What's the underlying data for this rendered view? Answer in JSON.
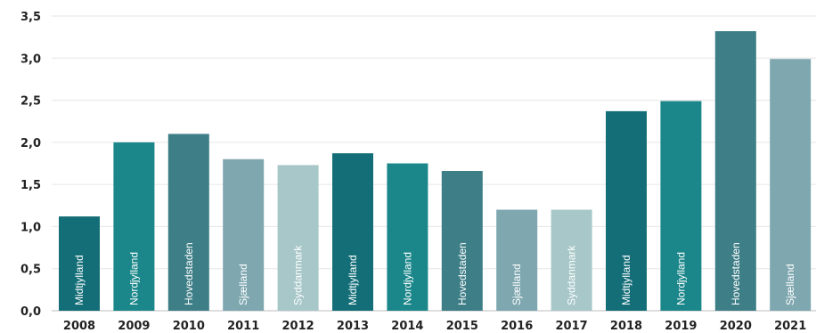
{
  "chart_data": {
    "type": "bar",
    "categories": [
      "2008",
      "2009",
      "2010",
      "2011",
      "2012",
      "2013",
      "2014",
      "2015",
      "2016",
      "2017",
      "2018",
      "2019",
      "2020",
      "2021"
    ],
    "values": [
      1.12,
      2.0,
      2.1,
      1.8,
      1.73,
      1.87,
      1.75,
      1.66,
      1.2,
      1.2,
      2.37,
      2.49,
      3.32,
      2.99
    ],
    "bar_labels": [
      "Midtjylland",
      "Nordjylland",
      "Hovedstaden",
      "Sjælland",
      "Syddanmark",
      "Midtjylland",
      "Nordjylland",
      "Hovedstaden",
      "Sjælland",
      "Syddanmark",
      "Midtjylland",
      "Nordjylland",
      "Hovedstaden",
      "Sjælland"
    ],
    "region_colors": {
      "Midtjylland": "#136e78",
      "Nordjylland": "#1b878a",
      "Hovedstaden": "#3d7e87",
      "Sjælland": "#7ea7b0",
      "Syddanmark": "#a7c7c8"
    },
    "yticks": [
      "0,0",
      "0,5",
      "1,0",
      "1,5",
      "2,0",
      "2,5",
      "3,0",
      "3,5"
    ],
    "ylim": [
      0,
      3.5
    ],
    "grid": true,
    "title": "",
    "xlabel": "",
    "ylabel": ""
  }
}
